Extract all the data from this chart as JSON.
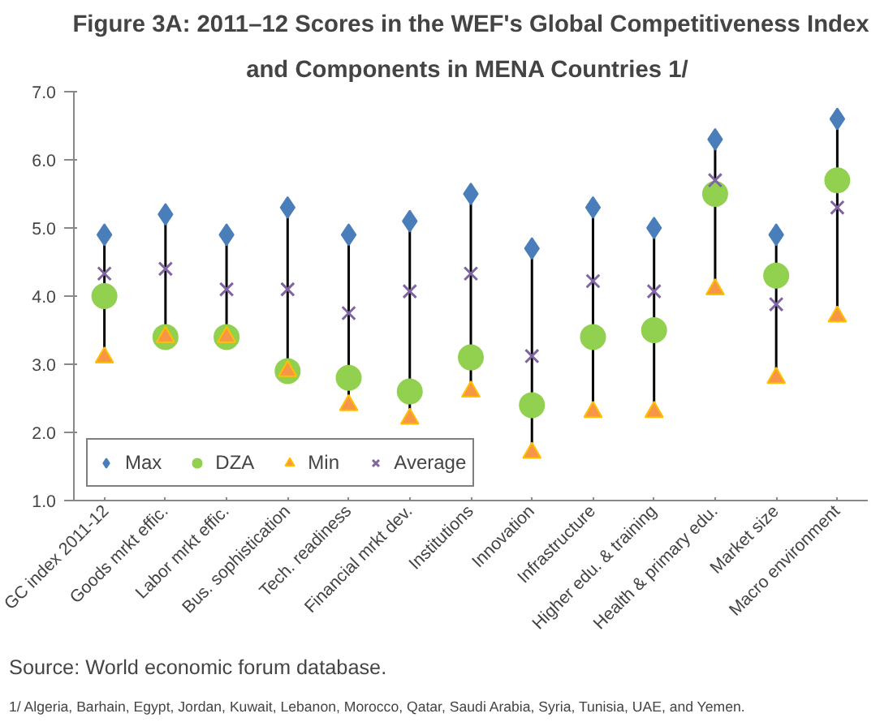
{
  "chart_data": {
    "type": "scatter",
    "title": "Figure 3A: 2011–12 Scores in the WEF's Global Competitiveness Index",
    "subtitle": "and Components in MENA Countries  1/",
    "categories": [
      "GC index 2011-12",
      "Goods mrkt effic.",
      "Labor mrkt effic.",
      "Bus. sophistication",
      "Tech. readiness",
      "Financial mrkt dev.",
      "Institutions",
      "Innovation",
      "Infrastructure",
      "Higher edu. & training",
      "Health & primary edu.",
      "Market size",
      "Macro environment"
    ],
    "series": [
      {
        "name": "Max",
        "color": "#4a7ebb",
        "marker": "diamond",
        "values": [
          4.9,
          5.2,
          4.9,
          5.3,
          4.9,
          5.1,
          5.5,
          4.7,
          5.3,
          5.0,
          6.3,
          4.9,
          6.6
        ]
      },
      {
        "name": "DZA",
        "color": "#92d050",
        "marker": "circle",
        "values": [
          4.0,
          3.4,
          3.4,
          2.9,
          2.8,
          2.6,
          3.1,
          2.4,
          3.4,
          3.5,
          5.5,
          4.3,
          5.7
        ]
      },
      {
        "name": "Min",
        "color": "#f79646",
        "marker": "triangle",
        "values": [
          3.1,
          3.4,
          3.4,
          2.9,
          2.4,
          2.2,
          2.6,
          1.7,
          2.3,
          2.3,
          4.1,
          2.8,
          3.7
        ]
      },
      {
        "name": "Average",
        "color": "#8064a2",
        "marker": "cross",
        "values": [
          4.33,
          4.4,
          4.1,
          4.1,
          3.75,
          4.07,
          4.33,
          3.12,
          4.22,
          4.07,
          5.7,
          3.88,
          5.3
        ]
      }
    ],
    "ylim": [
      1.0,
      7.0
    ],
    "yticks": [
      {
        "value": 1,
        "label": "1.0"
      },
      {
        "value": 2,
        "label": "2.0"
      },
      {
        "value": 3,
        "label": "3.0"
      },
      {
        "value": 4,
        "label": "4.0"
      },
      {
        "value": 5,
        "label": "5.0"
      },
      {
        "value": 6,
        "label": "6.0"
      },
      {
        "value": 7,
        "label": "7.0"
      }
    ],
    "grid": false,
    "legend": "bottom left",
    "annotations": [
      "Source: World economic forum database.",
      "1/ Algeria, Barhain, Egypt, Jordan, Kuwait, Lebanon, Morocco, Qatar, Saudi Arabia, Syria, Tunisia, UAE, and Yemen."
    ]
  }
}
